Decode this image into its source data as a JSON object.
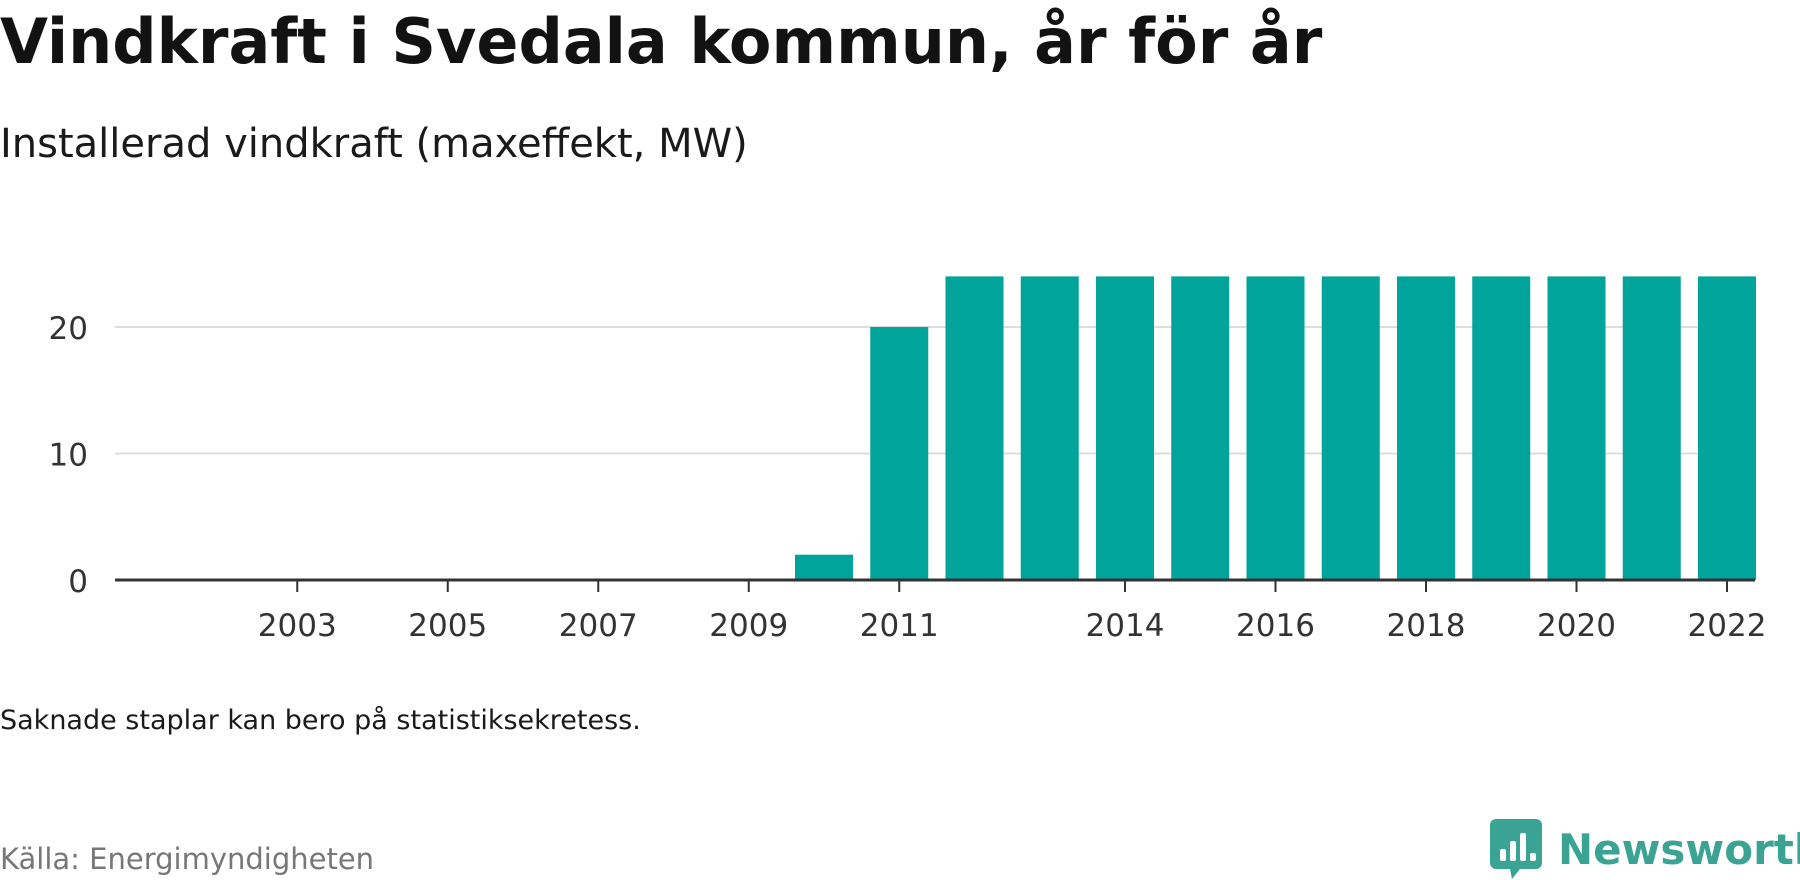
{
  "header": {
    "title": "Vindkraft i Svedala kommun, år för år",
    "subtitle": "Installerad vindkraft (maxeffekt, MW)"
  },
  "footer": {
    "note": "Saknade staplar kan bero på statistiksekretess.",
    "source": "Källa: Energimyndigheten",
    "brand": "Newsworthy",
    "brand_color": "#3aa394"
  },
  "colors": {
    "bar": "#00a49a",
    "grid": "#dddddd",
    "axis": "#333333",
    "tick_text": "#333333"
  },
  "chart_data": {
    "type": "bar",
    "title": "Vindkraft i Svedala kommun, år för år",
    "subtitle": "Installerad vindkraft (maxeffekt, MW)",
    "categories": [
      2002,
      2003,
      2004,
      2005,
      2006,
      2007,
      2008,
      2009,
      2010,
      2011,
      2012,
      2013,
      2014,
      2015,
      2016,
      2017,
      2018,
      2019,
      2020,
      2021,
      2022
    ],
    "values": [
      0,
      0,
      0,
      0,
      0,
      0,
      0,
      0,
      2,
      20,
      24,
      24,
      24,
      24,
      24,
      24,
      24,
      24,
      24,
      24,
      24
    ],
    "x_tick_labels": [
      "2003",
      "2005",
      "2007",
      "2009",
      "2011",
      "2014",
      "2016",
      "2018",
      "2020",
      "2022"
    ],
    "y_tick_labels": [
      "0",
      "10",
      "20"
    ],
    "yticks": [
      0,
      10,
      20
    ],
    "ylim": [
      0,
      24
    ],
    "xlabel": "",
    "ylabel": "",
    "grid": true,
    "legend": "none"
  }
}
